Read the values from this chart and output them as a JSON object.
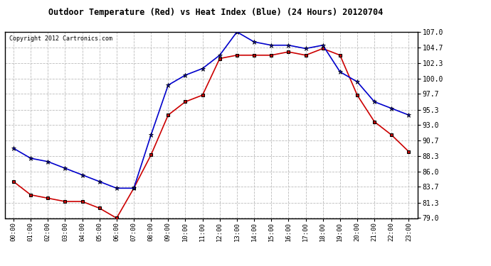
{
  "title": "Outdoor Temperature (Red) vs Heat Index (Blue) (24 Hours) 20120704",
  "copyright": "Copyright 2012 Cartronics.com",
  "hours": [
    "00:00",
    "01:00",
    "02:00",
    "03:00",
    "04:00",
    "05:00",
    "06:00",
    "07:00",
    "08:00",
    "09:00",
    "10:00",
    "11:00",
    "12:00",
    "13:00",
    "14:00",
    "15:00",
    "16:00",
    "17:00",
    "18:00",
    "19:00",
    "20:00",
    "21:00",
    "22:00",
    "23:00"
  ],
  "temp_red": [
    84.5,
    82.5,
    82.0,
    81.5,
    81.5,
    80.5,
    79.0,
    83.5,
    88.5,
    94.5,
    96.5,
    97.5,
    103.0,
    103.5,
    103.5,
    103.5,
    104.0,
    103.5,
    104.5,
    103.5,
    97.5,
    93.5,
    91.5,
    89.0
  ],
  "heat_blue": [
    89.5,
    88.0,
    87.5,
    86.5,
    85.5,
    84.5,
    83.5,
    83.5,
    91.5,
    99.0,
    100.5,
    101.5,
    103.5,
    107.0,
    105.5,
    105.0,
    105.0,
    104.5,
    105.0,
    101.0,
    99.5,
    96.5,
    95.5,
    94.5
  ],
  "ylim": [
    79.0,
    107.0
  ],
  "yticks": [
    79.0,
    81.3,
    83.7,
    86.0,
    88.3,
    90.7,
    93.0,
    95.3,
    97.7,
    100.0,
    102.3,
    104.7,
    107.0
  ],
  "bg_color": "#ffffff",
  "grid_color": "#bbbbbb",
  "red_color": "#cc0000",
  "blue_color": "#0000cc",
  "marker_color": "#000000",
  "figwidth": 6.9,
  "figheight": 3.75,
  "dpi": 100
}
